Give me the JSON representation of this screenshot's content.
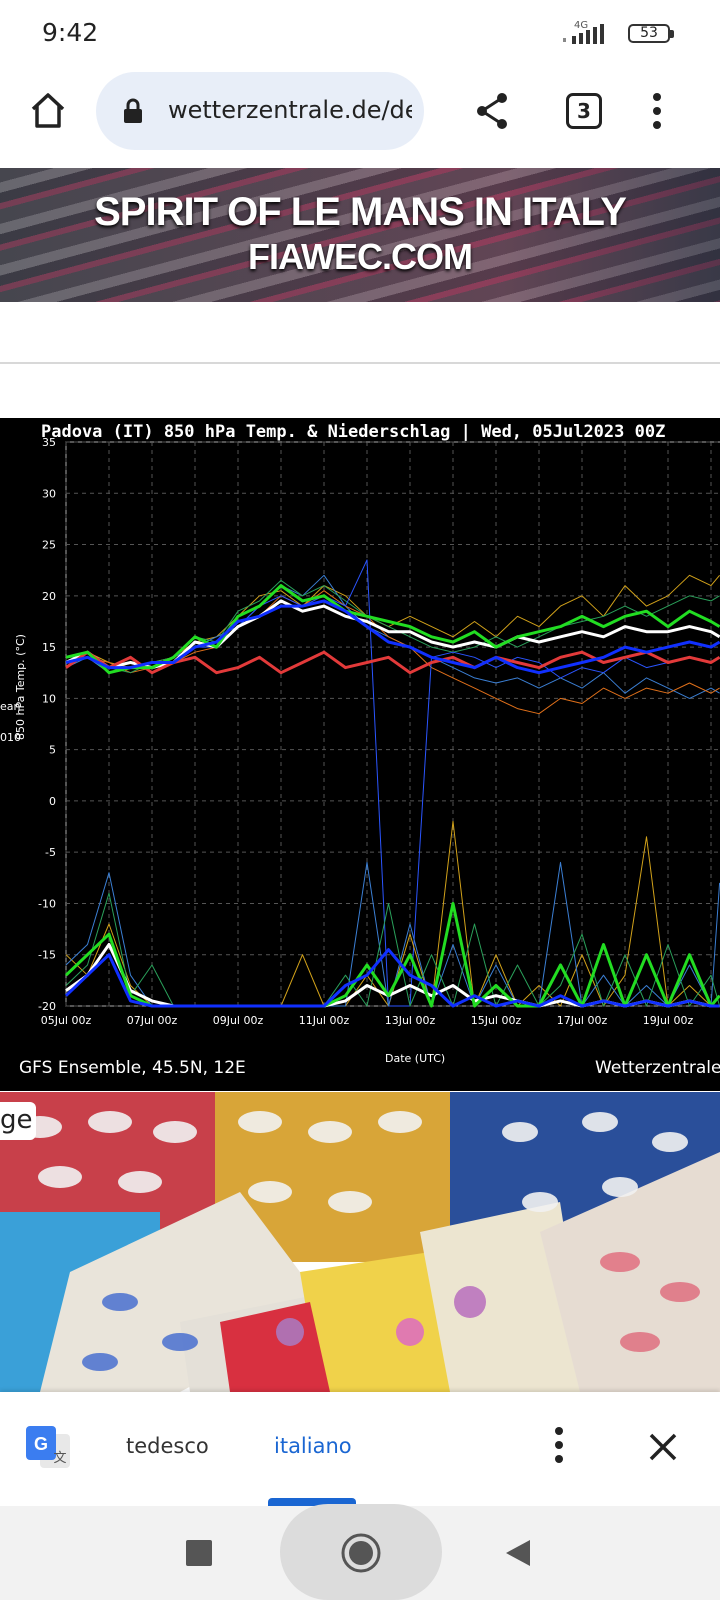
{
  "status_bar": {
    "time": "9:42",
    "network": "4G",
    "battery": "53"
  },
  "browser": {
    "url": "wetterzentrale.de/de",
    "tab_count": "3"
  },
  "ad": {
    "line1": "SPIRIT OF LE MANS IN ITALY",
    "line2": "FIAWEC.COM"
  },
  "chart": {
    "title": "Padova  (IT)  850 hPa Temp. & Niederschlag | Wed, 05Jul2023 00Z",
    "footer_left": "GFS Ensemble, 45.5N, 12E",
    "footer_right": "Wetterzentrale",
    "legend_partial_1": "ean",
    "legend_partial_2": "010"
  },
  "chart_data": {
    "type": "line",
    "title": "Padova  (IT)  850 hPa Temp. & Niederschlag | Wed, 05Jul2023 00Z",
    "xlabel": "Date (UTC)",
    "ylabel": "850 hPa Temp. (°C)",
    "x_ticks": [
      "05Jul 00z",
      "07Jul 00z",
      "09Jul 00z",
      "11Jul 00z",
      "13Jul 00z",
      "15Jul 00z",
      "17Jul 00z",
      "19Jul 00z"
    ],
    "y_ticks": [
      35,
      30,
      25,
      20,
      15,
      10,
      5,
      0,
      -5,
      -10,
      -15,
      -20
    ],
    "ylim": [
      -20,
      35
    ],
    "x_range_days": [
      0,
      15.2
    ],
    "grid": true,
    "series": [
      {
        "name": "",
        "color": "#ffffff",
        "width": 3,
        "x": [
          0,
          0.5,
          1,
          1.5,
          2,
          2.5,
          3,
          3.5,
          4,
          4.5,
          5,
          5.5,
          6,
          6.5,
          7,
          7.5,
          8,
          8.5,
          9,
          9.5,
          10,
          10.5,
          11,
          11.5,
          12,
          12.5,
          13,
          13.5,
          14,
          14.5,
          15,
          15.2
        ],
        "values": [
          13.5,
          14.5,
          13,
          13.5,
          13,
          13.5,
          15.5,
          15,
          17,
          18,
          19.5,
          18.5,
          19,
          18,
          17.5,
          16.5,
          16.5,
          15.5,
          15,
          15.5,
          15,
          16,
          15.5,
          16,
          16.5,
          16,
          17,
          16.5,
          16.5,
          17,
          16.5,
          16
        ]
      },
      {
        "name": "",
        "color": "#e23a3a",
        "width": 3,
        "x": [
          0,
          0.5,
          1,
          1.5,
          2,
          2.5,
          3,
          3.5,
          4,
          4.5,
          5,
          5.5,
          6,
          6.5,
          7,
          7.5,
          8,
          8.5,
          9,
          9.5,
          10,
          10.5,
          11,
          11.5,
          12,
          12.5,
          13,
          13.5,
          14,
          14.5,
          15,
          15.2
        ],
        "values": [
          13,
          14.5,
          13,
          14,
          12.5,
          13.5,
          14,
          12.5,
          13,
          14,
          12.5,
          13.5,
          14.5,
          13,
          13.5,
          14,
          12.5,
          13.5,
          14,
          13,
          14,
          13.5,
          13,
          14,
          14.5,
          13.5,
          14,
          14.5,
          13.5,
          14,
          13.5,
          14
        ]
      },
      {
        "name": "",
        "color": "#22dd22",
        "width": 3,
        "x": [
          0,
          0.5,
          1,
          1.5,
          2,
          2.5,
          3,
          3.5,
          4,
          4.5,
          5,
          5.5,
          6,
          6.5,
          7,
          7.5,
          8,
          8.5,
          9,
          9.5,
          10,
          10.5,
          11,
          11.5,
          12,
          12.5,
          13,
          13.5,
          14,
          14.5,
          15,
          15.2
        ],
        "values": [
          14,
          14.5,
          12.5,
          13,
          13,
          14,
          16,
          15,
          18,
          19,
          21,
          19.5,
          20,
          18.5,
          18,
          17.5,
          17,
          16,
          15.5,
          16.5,
          15,
          16,
          16.5,
          17,
          18,
          17,
          18,
          18.5,
          17,
          18.5,
          17.5,
          17
        ]
      },
      {
        "name": "",
        "color": "#1030ff",
        "width": 3,
        "x": [
          0,
          0.5,
          1,
          1.5,
          2,
          2.5,
          3,
          3.5,
          4,
          4.5,
          5,
          5.5,
          6,
          6.5,
          7,
          7.5,
          8,
          8.5,
          9,
          9.5,
          10,
          10.5,
          11,
          11.5,
          12,
          12.5,
          13,
          13.5,
          14,
          14.5,
          15,
          15.2
        ],
        "values": [
          13.5,
          14,
          13,
          13,
          13.5,
          13.5,
          15,
          15.5,
          17.5,
          18,
          19,
          19,
          19.5,
          18.5,
          17,
          15.5,
          15,
          14,
          13.5,
          13,
          14,
          13,
          12.5,
          13,
          13.5,
          14,
          15,
          14.5,
          15,
          15.5,
          15,
          15.5
        ]
      },
      {
        "name": "",
        "color": "#d2a21a",
        "width": 1,
        "x": [
          0,
          0.5,
          1,
          1.5,
          2,
          2.5,
          3,
          3.5,
          4,
          4.5,
          5,
          5.5,
          6,
          6.5,
          7,
          7.5,
          8,
          8.5,
          9,
          9.5,
          10,
          10.5,
          11,
          11.5,
          12,
          12.5,
          13,
          13.5,
          14,
          14.5,
          15,
          15.2
        ],
        "values": [
          14,
          14.5,
          13.5,
          13,
          13.5,
          14,
          15.5,
          16,
          18,
          20,
          20.5,
          19,
          21,
          20,
          18,
          17,
          18,
          17,
          16,
          17.5,
          16,
          18,
          17,
          19,
          20,
          18,
          21,
          19,
          20,
          22,
          21,
          22
        ]
      },
      {
        "name": "",
        "color": "#3b7fd4",
        "width": 1,
        "x": [
          0,
          0.5,
          1,
          1.5,
          2,
          2.5,
          3,
          3.5,
          4,
          4.5,
          5,
          5.5,
          6,
          6.5,
          7,
          7.5,
          8,
          8.5,
          9,
          9.5,
          10,
          10.5,
          11,
          11.5,
          12,
          12.5,
          13,
          13.5,
          14,
          14.5,
          15,
          15.2
        ],
        "values": [
          13,
          14,
          12.5,
          13,
          13,
          14,
          15,
          16,
          17,
          19,
          21,
          20,
          22,
          19,
          17,
          16,
          15,
          14,
          13,
          12,
          11.5,
          12,
          11,
          12,
          11,
          12.5,
          10.5,
          12,
          11,
          10,
          11,
          10.5
        ]
      },
      {
        "name": "",
        "color": "#e0701a",
        "width": 1,
        "x": [
          0,
          0.5,
          1,
          1.5,
          2,
          2.5,
          3,
          3.5,
          4,
          4.5,
          5,
          5.5,
          6,
          6.5,
          7,
          7.5,
          8,
          8.5,
          9,
          9.5,
          10,
          10.5,
          11,
          11.5,
          12,
          12.5,
          13,
          13.5,
          14,
          14.5,
          15,
          15.2
        ],
        "values": [
          13.5,
          14,
          13.5,
          12.5,
          13,
          13.5,
          14.5,
          15,
          17,
          18,
          20,
          19,
          20.5,
          19,
          18,
          16,
          15,
          13,
          12,
          11,
          10,
          9,
          8.5,
          10,
          9.5,
          11,
          10,
          11,
          10.5,
          11.5,
          10.5,
          11
        ]
      },
      {
        "name": "",
        "color": "#2aa05a",
        "width": 1,
        "x": [
          0,
          0.5,
          1,
          1.5,
          2,
          2.5,
          3,
          3.5,
          4,
          4.5,
          5,
          5.5,
          6,
          6.5,
          7,
          7.5,
          8,
          8.5,
          9,
          9.5,
          10,
          10.5,
          11,
          11.5,
          12,
          12.5,
          13,
          13.5,
          14,
          14.5,
          15,
          15.2
        ],
        "values": [
          14,
          14,
          13,
          12.5,
          13.5,
          14,
          16,
          15.5,
          18.5,
          19.5,
          21.5,
          20,
          21,
          19.5,
          18,
          17,
          16,
          15,
          14.5,
          15,
          16,
          15,
          16,
          17,
          17.5,
          18,
          19,
          18,
          19,
          20,
          19.5,
          20
        ]
      },
      {
        "name": "",
        "color": "#2b55ff",
        "width": 1,
        "x": [
          0,
          0.5,
          1,
          1.5,
          2,
          2.5,
          3,
          3.5,
          4,
          4.5,
          5,
          5.5,
          6,
          6.5,
          7,
          7.5,
          8,
          8.5,
          9,
          9.5,
          10,
          10.5,
          11,
          11.5,
          12,
          12.5,
          13,
          13.5,
          14,
          14.5,
          15,
          15.2
        ],
        "values": [
          13.5,
          14,
          13,
          13,
          13,
          14,
          15,
          15,
          17,
          19,
          20,
          19,
          20,
          19,
          23.5,
          -20,
          -20,
          14,
          14.5,
          14,
          13,
          14,
          13.5,
          12,
          13,
          12.5,
          14,
          13,
          13.5,
          14,
          13.5,
          14
        ]
      },
      {
        "name": "",
        "color": "#ffffff",
        "width": 3,
        "x": [
          0,
          0.5,
          1,
          1.5,
          2,
          2.5,
          3,
          3.5,
          4,
          4.5,
          5,
          5.5,
          6,
          6.5,
          7,
          7.5,
          8,
          8.5,
          9,
          9.5,
          10,
          10.5,
          11,
          11.5,
          12,
          12.5,
          13,
          13.5,
          14,
          14.5,
          15,
          15.2
        ],
        "values": [
          -18.5,
          -17,
          -14,
          -18.5,
          -19.5,
          -20,
          -20,
          -20,
          -20,
          -20,
          -20,
          -20,
          -20,
          -19.5,
          -18,
          -19,
          -18,
          -19,
          -18,
          -19.5,
          -19,
          -19.5,
          -20,
          -19.5,
          -20,
          -19.5,
          -20,
          -19.5,
          -20,
          -19.5,
          -20,
          -20
        ]
      },
      {
        "name": "",
        "color": "#22dd22",
        "width": 3,
        "x": [
          0,
          0.5,
          1,
          1.5,
          2,
          2.5,
          3,
          3.5,
          4,
          4.5,
          5,
          5.5,
          6,
          6.5,
          7,
          7.5,
          8,
          8.5,
          9,
          9.5,
          10,
          10.5,
          11,
          11.5,
          12,
          12.5,
          13,
          13.5,
          14,
          14.5,
          15,
          15.2
        ],
        "values": [
          -17,
          -15,
          -13,
          -19,
          -20,
          -20,
          -20,
          -20,
          -20,
          -20,
          -20,
          -20,
          -20,
          -19,
          -16,
          -19,
          -15,
          -20,
          -10,
          -20,
          -18,
          -20,
          -20,
          -16,
          -20,
          -14,
          -20,
          -15,
          -20,
          -15,
          -20,
          -19
        ]
      },
      {
        "name": "",
        "color": "#1030ff",
        "width": 3,
        "x": [
          0,
          0.5,
          1,
          1.5,
          2,
          2.5,
          3,
          3.5,
          4,
          4.5,
          5,
          5.5,
          6,
          6.5,
          7,
          7.5,
          8,
          8.5,
          9,
          9.5,
          10,
          10.5,
          11,
          11.5,
          12,
          12.5,
          13,
          13.5,
          14,
          14.5,
          15,
          15.2
        ],
        "values": [
          -19,
          -17,
          -15,
          -19.5,
          -20,
          -20,
          -20,
          -20,
          -20,
          -20,
          -20,
          -20,
          -20,
          -18,
          -17,
          -14.5,
          -17,
          -18,
          -20,
          -19,
          -20,
          -19.5,
          -20,
          -19,
          -20,
          -19.5,
          -20,
          -19.5,
          -20,
          -19.5,
          -20,
          -20
        ]
      },
      {
        "name": "",
        "color": "#d2a21a",
        "width": 1,
        "x": [
          0,
          0.5,
          1,
          1.5,
          2,
          2.5,
          3,
          3.5,
          4,
          4.5,
          5,
          5.5,
          6,
          6.5,
          7,
          7.5,
          8,
          8.5,
          9,
          9.5,
          10,
          10.5,
          11,
          11.5,
          12,
          12.5,
          13,
          13.5,
          14,
          14.5,
          15,
          15.2
        ],
        "values": [
          -15,
          -17,
          -12,
          -18,
          -20,
          -20,
          -20,
          -20,
          -20,
          -20,
          -20,
          -15,
          -20,
          -20,
          -17,
          -20,
          -13,
          -20,
          -2,
          -20,
          -15,
          -20,
          -18,
          -20,
          -15,
          -20,
          -17,
          -3.5,
          -20,
          -18,
          -20,
          -19
        ]
      },
      {
        "name": "",
        "color": "#3b7fd4",
        "width": 1,
        "x": [
          0,
          0.5,
          1,
          1.5,
          2,
          2.5,
          3,
          3.5,
          4,
          4.5,
          5,
          5.5,
          6,
          6.5,
          7,
          7.5,
          8,
          8.5,
          9,
          9.5,
          10,
          10.5,
          11,
          11.5,
          12,
          12.5,
          13,
          13.5,
          14,
          14.5,
          15,
          15.2
        ],
        "values": [
          -16,
          -14,
          -7,
          -17,
          -20,
          -20,
          -20,
          -20,
          -20,
          -20,
          -20,
          -20,
          -20,
          -20,
          -6,
          -20,
          -12,
          -20,
          -14,
          -20,
          -16,
          -20,
          -20,
          -6,
          -20,
          -17,
          -20,
          -18,
          -20,
          -16,
          -20,
          -8
        ]
      },
      {
        "name": "",
        "color": "#2aa05a",
        "width": 1,
        "x": [
          0,
          0.5,
          1,
          1.5,
          2,
          2.5,
          3,
          3.5,
          4,
          4.5,
          5,
          5.5,
          6,
          6.5,
          7,
          7.5,
          8,
          8.5,
          9,
          9.5,
          10,
          10.5,
          11,
          11.5,
          12,
          12.5,
          13,
          13.5,
          14,
          14.5,
          15,
          15.2
        ],
        "values": [
          -18,
          -16,
          -9,
          -19,
          -16,
          -20,
          -20,
          -20,
          -20,
          -20,
          -20,
          -20,
          -20,
          -17,
          -20,
          -10,
          -20,
          -15,
          -20,
          -12,
          -20,
          -16,
          -20,
          -18,
          -13,
          -20,
          -15,
          -20,
          -14,
          -20,
          -17,
          -20
        ]
      }
    ]
  },
  "translate_bar": {
    "lang1": "tedesco",
    "lang2": "italiano"
  },
  "photo": {
    "badge_text": "ge"
  }
}
